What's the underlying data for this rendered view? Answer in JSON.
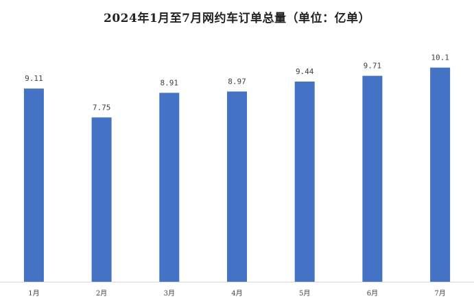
{
  "chart_data": {
    "type": "bar",
    "title": "2024年1月至7月网约车订单总量（单位：亿单）",
    "categories": [
      "1月",
      "2月",
      "3月",
      "4月",
      "5月",
      "6月",
      "7月"
    ],
    "values": [
      9.11,
      7.75,
      8.91,
      8.97,
      9.44,
      9.71,
      10.1
    ],
    "data_labels": [
      "9.11",
      "7.75",
      "8.91",
      "8.97",
      "9.44",
      "9.71",
      "10.1"
    ],
    "xlabel": "",
    "ylabel": "",
    "ylim": [
      0,
      10.7
    ],
    "grid": false,
    "legend": "none",
    "colors": {
      "bar": "#4472C4",
      "text": "#404040",
      "axis": "#d9d9d9"
    }
  }
}
